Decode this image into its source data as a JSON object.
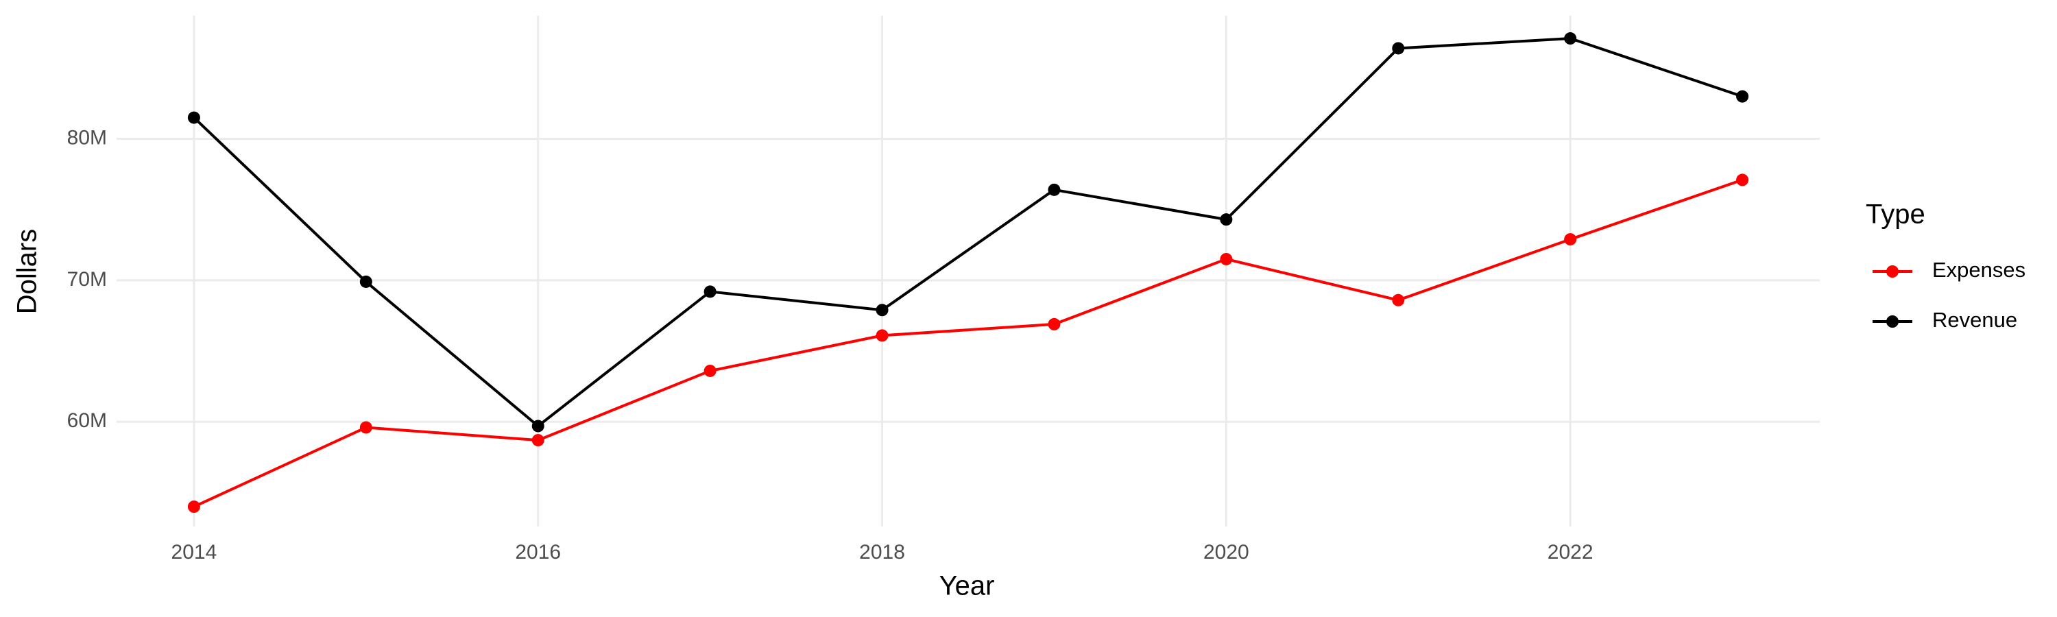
{
  "chart_data": {
    "type": "line",
    "x_label": "Year",
    "y_label": "Dollars",
    "legend_title": "Type",
    "x": [
      2014,
      2015,
      2016,
      2017,
      2018,
      2019,
      2020,
      2021,
      2022,
      2023
    ],
    "series": [
      {
        "name": "Expenses",
        "color": "#ff0000",
        "values": [
          54000000,
          59600000,
          58700000,
          63600000,
          66100000,
          66900000,
          71500000,
          68600000,
          72900000,
          77100000
        ]
      },
      {
        "name": "Revenue",
        "color": "#000000",
        "values": [
          81500000,
          69900000,
          59700000,
          69200000,
          67900000,
          76400000,
          74300000,
          86400000,
          87100000,
          83000000
        ]
      }
    ],
    "xlim": [
      2013.55,
      2023.45
    ],
    "xticks": [
      2014,
      2016,
      2018,
      2020,
      2022
    ],
    "ylim": [
      52600000,
      88700000
    ],
    "yticks": [
      {
        "value": 60000000,
        "label": "60M"
      },
      {
        "value": 70000000,
        "label": "70M"
      },
      {
        "value": 80000000,
        "label": "80M"
      }
    ],
    "grid": true,
    "legend": "right"
  }
}
